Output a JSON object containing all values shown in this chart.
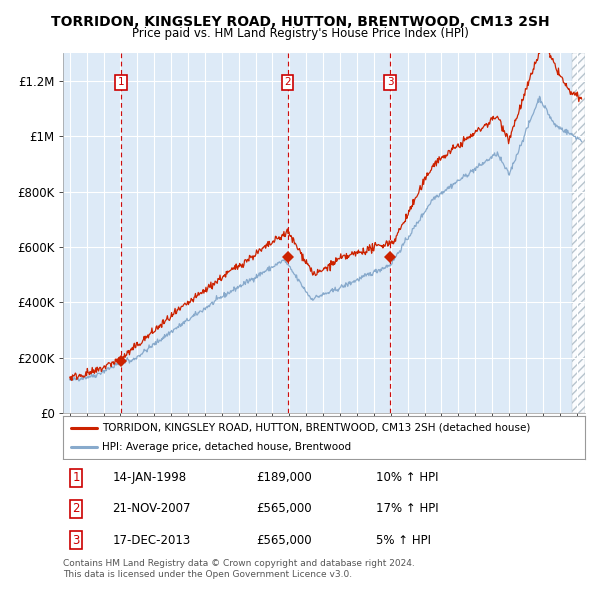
{
  "title": "TORRIDON, KINGSLEY ROAD, HUTTON, BRENTWOOD, CM13 2SH",
  "subtitle": "Price paid vs. HM Land Registry's House Price Index (HPI)",
  "legend_line1": "TORRIDON, KINGSLEY ROAD, HUTTON, BRENTWOOD, CM13 2SH (detached house)",
  "legend_line2": "HPI: Average price, detached house, Brentwood",
  "footer1": "Contains HM Land Registry data © Crown copyright and database right 2024.",
  "footer2": "This data is licensed under the Open Government Licence v3.0.",
  "transactions": [
    {
      "num": "1",
      "date": "14-JAN-1998",
      "price": "£189,000",
      "hpi_str": "10% ↑ HPI",
      "x_year": 1998.04,
      "y_val": 189000
    },
    {
      "num": "2",
      "date": "21-NOV-2007",
      "price": "£565,000",
      "hpi_str": "17% ↑ HPI",
      "x_year": 2007.89,
      "y_val": 565000
    },
    {
      "num": "3",
      "date": "17-DEC-2013",
      "price": "£565,000",
      "hpi_str": "5% ↑ HPI",
      "x_year": 2013.96,
      "y_val": 565000
    }
  ],
  "vline_color": "#cc0000",
  "hpi_color": "#88aacc",
  "price_color": "#cc2200",
  "plot_bg": "#ddeaf7",
  "fig_bg": "#ffffff",
  "grid_color": "#ffffff",
  "ylim": [
    0,
    1300000
  ],
  "yticks": [
    0,
    200000,
    400000,
    600000,
    800000,
    1000000,
    1200000
  ],
  "xlim_start": 1994.6,
  "xlim_end": 2025.5,
  "x_year_start": 1995,
  "x_year_end": 2025
}
